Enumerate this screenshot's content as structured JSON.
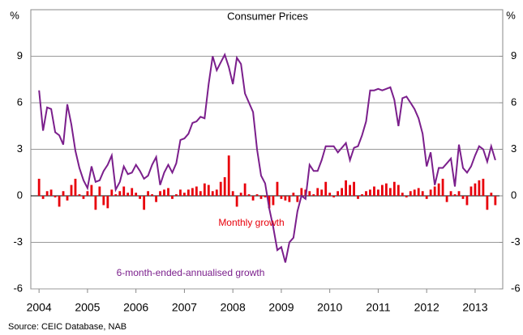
{
  "chart_data": {
    "type": "bar-line",
    "title": "Consumer Prices",
    "y_label": "%",
    "y2_label": "%",
    "source": "Source: CEIC Database, NAB",
    "xlim": [
      2003.83,
      2013.57
    ],
    "xticks": [
      2004,
      2005,
      2006,
      2007,
      2008,
      2009,
      2010,
      2011,
      2012,
      2013
    ],
    "ylim": [
      -6,
      12
    ],
    "yticks": [
      -6,
      -3,
      0,
      3,
      6,
      9
    ],
    "y2lim": [
      -6,
      12
    ],
    "y2ticks": [
      -6,
      -3,
      0,
      3,
      6,
      9
    ],
    "grid": true,
    "x": [
      2004,
      2004.083,
      2004.167,
      2004.25,
      2004.333,
      2004.417,
      2004.5,
      2004.583,
      2004.667,
      2004.75,
      2004.833,
      2004.917,
      2005,
      2005.083,
      2005.167,
      2005.25,
      2005.333,
      2005.417,
      2005.5,
      2005.583,
      2005.667,
      2005.75,
      2005.833,
      2005.917,
      2006,
      2006.083,
      2006.167,
      2006.25,
      2006.333,
      2006.417,
      2006.5,
      2006.583,
      2006.667,
      2006.75,
      2006.833,
      2006.917,
      2007,
      2007.083,
      2007.167,
      2007.25,
      2007.333,
      2007.417,
      2007.5,
      2007.583,
      2007.667,
      2007.75,
      2007.833,
      2007.917,
      2008,
      2008.083,
      2008.167,
      2008.25,
      2008.333,
      2008.417,
      2008.5,
      2008.583,
      2008.667,
      2008.75,
      2008.833,
      2008.917,
      2009,
      2009.083,
      2009.167,
      2009.25,
      2009.333,
      2009.417,
      2009.5,
      2009.583,
      2009.667,
      2009.75,
      2009.833,
      2009.917,
      2010,
      2010.083,
      2010.167,
      2010.25,
      2010.333,
      2010.417,
      2010.5,
      2010.583,
      2010.667,
      2010.75,
      2010.833,
      2010.917,
      2011,
      2011.083,
      2011.167,
      2011.25,
      2011.333,
      2011.417,
      2011.5,
      2011.583,
      2011.667,
      2011.75,
      2011.833,
      2011.917,
      2012,
      2012.083,
      2012.167,
      2012.25,
      2012.333,
      2012.417,
      2012.5,
      2012.583,
      2012.667,
      2012.75,
      2012.833,
      2012.917,
      2013,
      2013.083,
      2013.167,
      2013.25,
      2013.333,
      2013.417
    ],
    "series": [
      {
        "name": "Monthly growth",
        "type": "bar",
        "color": "#e8000b",
        "values": [
          1.1,
          -0.2,
          0.3,
          0.4,
          -0.1,
          -0.7,
          0.3,
          -0.3,
          0.7,
          1.1,
          0.1,
          -0.2,
          0.3,
          0.7,
          -0.9,
          0.6,
          -0.6,
          -0.8,
          0.4,
          0.1,
          0.3,
          0.6,
          0.2,
          0.5,
          0.2,
          -0.2,
          -0.9,
          0.3,
          0.1,
          -0.4,
          0.3,
          0.4,
          0.5,
          -0.2,
          0.1,
          0.4,
          0.2,
          0.4,
          0.5,
          0.6,
          0.3,
          0.8,
          0.7,
          0.3,
          0.4,
          0.9,
          1.2,
          2.6,
          0.3,
          -0.7,
          0.2,
          0.8,
          0.1,
          -0.3,
          0.1,
          -0.2,
          -0.1,
          -0.8,
          -0.6,
          0.9,
          -0.2,
          -0.3,
          -0.4,
          0.2,
          -0.4,
          0.5,
          0.4,
          0.3,
          0.1,
          0.5,
          0.4,
          0.9,
          0.2,
          -0.1,
          0.3,
          0.5,
          1.0,
          0.7,
          0.9,
          -0.2,
          0.1,
          0.3,
          0.4,
          0.6,
          0.4,
          0.7,
          0.8,
          0.5,
          0.9,
          0.7,
          0.2,
          -0.1,
          0.3,
          0.4,
          0.5,
          0.3,
          -0.2,
          0.4,
          0.6,
          0.8,
          1.1,
          -0.4,
          0.3,
          0.1,
          0.3,
          -0.2,
          -0.6,
          0.6,
          0.8,
          1.0,
          1.1,
          -0.9,
          0.2,
          -0.6
        ]
      },
      {
        "name": "6-month-ended-annualised growth",
        "type": "line",
        "color": "#7b1f8c",
        "values": [
          6.8,
          4.2,
          5.7,
          5.6,
          4.1,
          3.9,
          3.3,
          5.9,
          4.6,
          2.9,
          1.8,
          1.0,
          0.5,
          1.9,
          0.9,
          1.0,
          1.6,
          2.0,
          2.6,
          0.4,
          0.9,
          1.9,
          1.4,
          1.5,
          2.0,
          1.6,
          1.1,
          1.3,
          2.0,
          2.5,
          0.7,
          1.5,
          2.0,
          1.5,
          2.1,
          3.6,
          3.7,
          4.0,
          4.7,
          4.8,
          5.1,
          5.0,
          7.2,
          9.0,
          8.1,
          8.6,
          9.1,
          8.3,
          7.2,
          8.9,
          8.5,
          6.6,
          6.0,
          5.4,
          3.0,
          1.3,
          0.8,
          -0.8,
          -2.0,
          -3.5,
          -3.3,
          -4.3,
          -3.0,
          -2.7,
          -1.0,
          0.0,
          -0.2,
          2.0,
          1.6,
          1.6,
          2.3,
          3.2,
          3.2,
          3.2,
          2.8,
          3.1,
          3.4,
          2.3,
          3.1,
          3.2,
          3.9,
          4.8,
          6.8,
          6.8,
          6.9,
          6.8,
          6.9,
          7.0,
          6.2,
          4.5,
          6.3,
          6.4,
          6.0,
          5.6,
          5.0,
          4.0,
          1.9,
          2.8,
          0.7,
          1.8,
          1.8,
          2.1,
          2.4,
          0.6,
          3.3,
          1.8,
          1.5,
          1.9,
          2.6,
          3.2,
          3.0,
          2.2,
          3.2,
          2.3
        ]
      }
    ]
  }
}
